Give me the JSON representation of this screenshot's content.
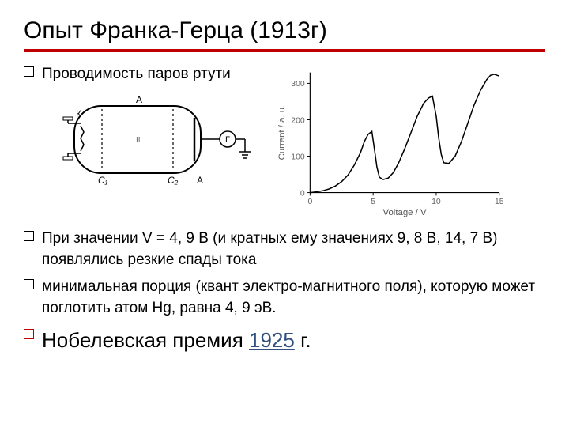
{
  "title": "Опыт Франка-Герца (1913г)",
  "bullets": {
    "b1": "Проводимость паров ртути",
    "b2": "При значении V = 4, 9 В (и кратных ему значениях 9, 8 В, 14, 7 В) появлялись резкие спады тока",
    "b3": "минимальная порция (квант электро-магнитного поля), которую может поглотить атом Hg, равна 4, 9 эВ.",
    "b4_prefix": "Нобелевская премия ",
    "b4_year": "1925",
    "b4_suffix": " г."
  },
  "circuit": {
    "labels": {
      "K": "К",
      "C1": "C₁",
      "C2": "C₂",
      "A_top": "А",
      "A_bot": "А",
      "G": "Г"
    },
    "stroke": "#000000",
    "bg": "#ffffff"
  },
  "chart": {
    "xlabel": "Voltage / V",
    "ylabel": "Current / a. u.",
    "xlim": [
      0,
      15
    ],
    "ylim": [
      0,
      330
    ],
    "xticks": [
      0,
      5,
      10,
      15
    ],
    "yticks": [
      0,
      100,
      200,
      300
    ],
    "line_color": "#000000",
    "axis_color": "#000000",
    "bg": "#ffffff",
    "tick_fontsize": 11,
    "label_fontsize": 12,
    "data": [
      [
        0,
        0
      ],
      [
        0.5,
        2
      ],
      [
        1,
        5
      ],
      [
        1.5,
        10
      ],
      [
        2,
        18
      ],
      [
        2.5,
        30
      ],
      [
        3,
        48
      ],
      [
        3.5,
        75
      ],
      [
        4,
        110
      ],
      [
        4.3,
        140
      ],
      [
        4.6,
        160
      ],
      [
        4.9,
        168
      ],
      [
        5.1,
        120
      ],
      [
        5.3,
        70
      ],
      [
        5.5,
        42
      ],
      [
        5.8,
        36
      ],
      [
        6.2,
        40
      ],
      [
        6.6,
        55
      ],
      [
        7,
        80
      ],
      [
        7.5,
        120
      ],
      [
        8,
        165
      ],
      [
        8.5,
        210
      ],
      [
        9,
        245
      ],
      [
        9.4,
        260
      ],
      [
        9.7,
        265
      ],
      [
        10,
        210
      ],
      [
        10.2,
        150
      ],
      [
        10.4,
        105
      ],
      [
        10.6,
        82
      ],
      [
        11,
        80
      ],
      [
        11.5,
        100
      ],
      [
        12,
        140
      ],
      [
        12.5,
        190
      ],
      [
        13,
        240
      ],
      [
        13.5,
        280
      ],
      [
        14,
        310
      ],
      [
        14.3,
        322
      ],
      [
        14.6,
        325
      ],
      [
        15,
        320
      ]
    ]
  },
  "colors": {
    "accent": "#c00000",
    "link": "#305080",
    "text": "#000000"
  }
}
